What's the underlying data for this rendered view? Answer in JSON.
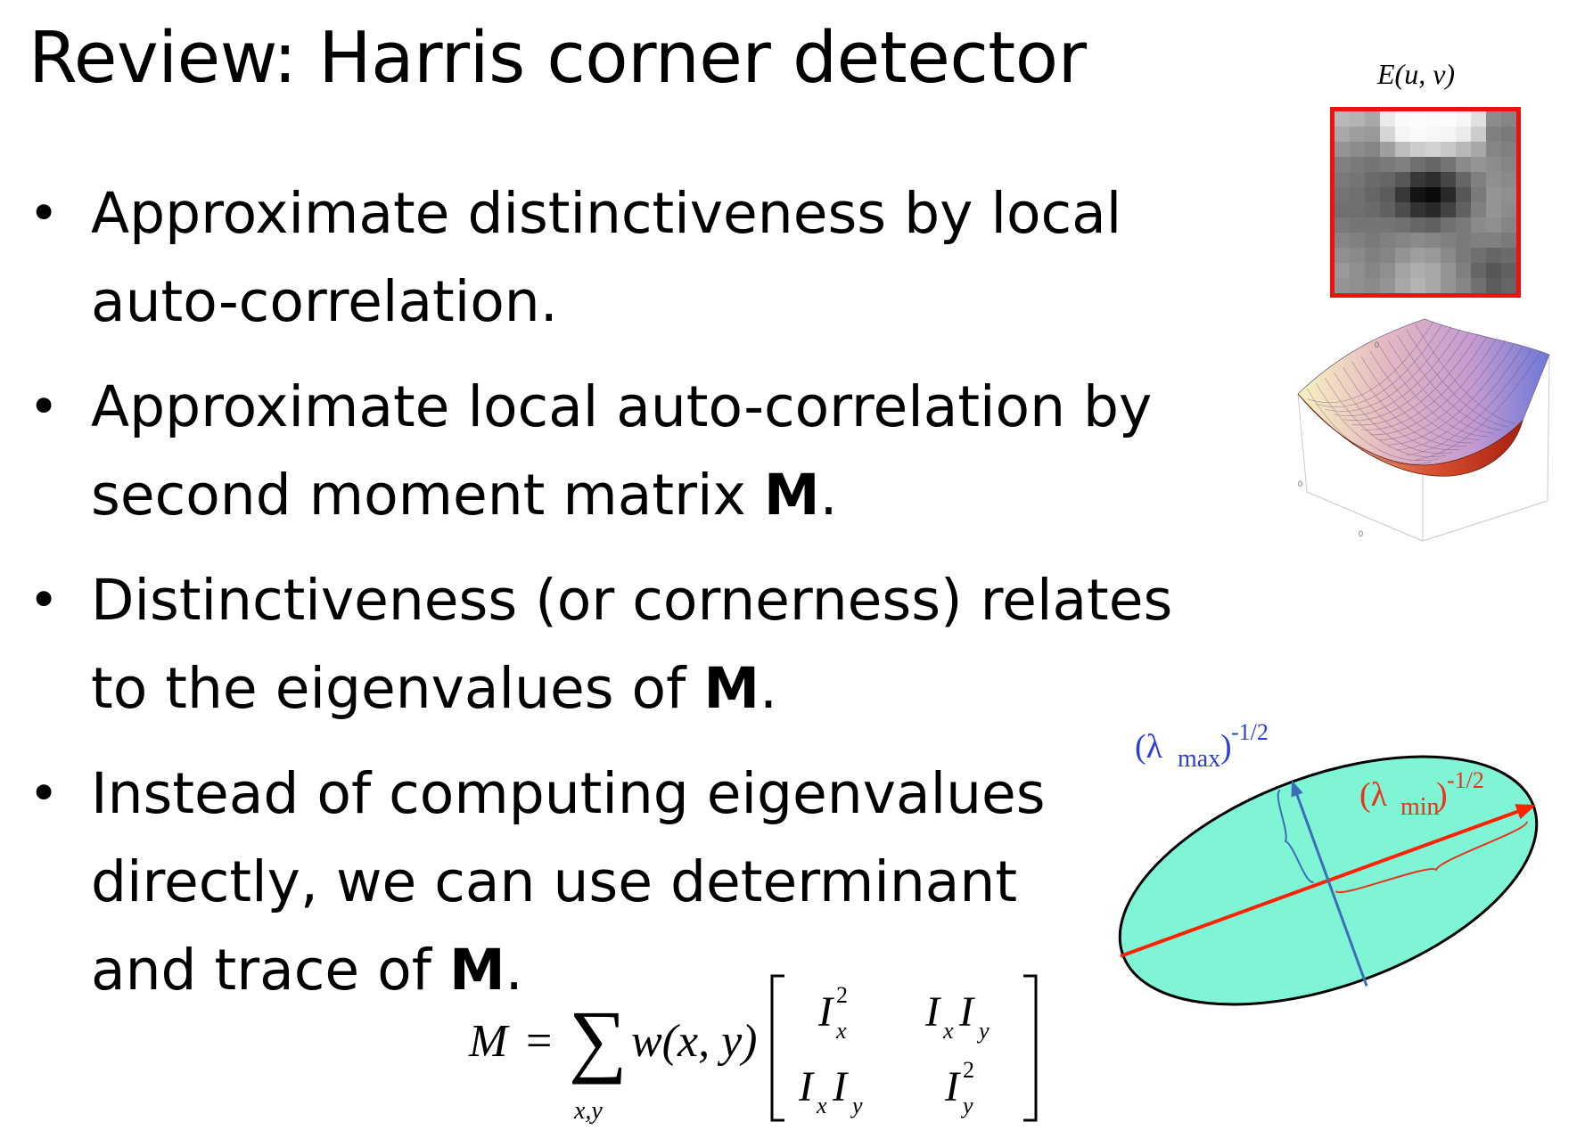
{
  "slide": {
    "title": "Review: Harris corner detector",
    "bullets": [
      {
        "lines": [
          [
            "Approximate distinctiveness by local"
          ],
          [
            "auto-correlation."
          ]
        ]
      },
      {
        "lines": [
          [
            "Approximate local auto-correlation by"
          ],
          [
            "second moment matrix ",
            {
              "b": "M"
            },
            "."
          ]
        ]
      },
      {
        "lines": [
          [
            "Distinctiveness (or cornerness) relates"
          ],
          [
            "to the eigenvalues of ",
            {
              "b": "M"
            },
            "."
          ]
        ]
      },
      {
        "lines": [
          [
            "Instead of computing eigenvalues"
          ],
          [
            "directly, we can use determinant"
          ],
          [
            "and trace of ",
            {
              "b": "M"
            },
            "."
          ]
        ]
      }
    ],
    "bullet_glyph": "•"
  },
  "equation": {
    "lhs": "M",
    "equals": "=",
    "sum_symbol": "∑",
    "sum_subscript": "x,y",
    "weight": "w(x, y)",
    "matrix": {
      "a11_base": "I",
      "a11_sub": "x",
      "a11_sup": "2",
      "a12_base1": "I",
      "a12_sub1": "x",
      "a12_base2": "I",
      "a12_sub2": "y",
      "a21_base1": "I",
      "a21_sub1": "x",
      "a21_base2": "I",
      "a21_sub2": "y",
      "a22_base": "I",
      "a22_sub": "y",
      "a22_sup": "2"
    }
  },
  "figures": {
    "error_label": "E(u, v)",
    "heatmap_border_color": "#ee1111",
    "heatmap_values": [
      [
        0.72,
        0.7,
        0.66,
        0.92,
        0.98,
        0.99,
        0.98,
        0.99,
        0.97,
        0.88,
        0.55,
        0.52
      ],
      [
        0.66,
        0.62,
        0.6,
        0.84,
        0.96,
        0.98,
        0.97,
        0.96,
        0.92,
        0.8,
        0.5,
        0.48
      ],
      [
        0.58,
        0.55,
        0.52,
        0.62,
        0.74,
        0.8,
        0.82,
        0.78,
        0.72,
        0.66,
        0.52,
        0.5
      ],
      [
        0.5,
        0.48,
        0.46,
        0.48,
        0.5,
        0.44,
        0.4,
        0.46,
        0.54,
        0.58,
        0.55,
        0.52
      ],
      [
        0.48,
        0.46,
        0.42,
        0.4,
        0.34,
        0.22,
        0.18,
        0.28,
        0.4,
        0.5,
        0.56,
        0.54
      ],
      [
        0.46,
        0.44,
        0.4,
        0.36,
        0.22,
        0.08,
        0.04,
        0.16,
        0.34,
        0.48,
        0.58,
        0.56
      ],
      [
        0.44,
        0.44,
        0.42,
        0.38,
        0.3,
        0.2,
        0.16,
        0.26,
        0.38,
        0.5,
        0.58,
        0.55
      ],
      [
        0.48,
        0.46,
        0.46,
        0.46,
        0.44,
        0.4,
        0.38,
        0.44,
        0.48,
        0.54,
        0.56,
        0.52
      ],
      [
        0.52,
        0.5,
        0.48,
        0.5,
        0.52,
        0.54,
        0.52,
        0.5,
        0.48,
        0.5,
        0.5,
        0.48
      ],
      [
        0.56,
        0.54,
        0.5,
        0.52,
        0.58,
        0.62,
        0.6,
        0.54,
        0.48,
        0.44,
        0.4,
        0.42
      ],
      [
        0.6,
        0.56,
        0.52,
        0.56,
        0.64,
        0.68,
        0.66,
        0.58,
        0.5,
        0.4,
        0.34,
        0.38
      ],
      [
        0.58,
        0.56,
        0.54,
        0.58,
        0.66,
        0.7,
        0.66,
        0.58,
        0.52,
        0.44,
        0.36,
        0.4
      ]
    ],
    "bowl_axis_ticks": [
      "0",
      "0",
      "0"
    ],
    "ellipse": {
      "fill_color": "#7ff5d5",
      "major_axis_color": "#ff2200",
      "minor_axis_color": "#3a6fb5",
      "lambda_max_label": "(λmax)-1/2",
      "lambda_max_base": "(λ",
      "lambda_max_sub": "max",
      "lambda_max_close": ")",
      "lambda_max_sup": "-1/2",
      "lambda_min_base": "(λ",
      "lambda_min_sub": "min",
      "lambda_min_close": ")",
      "lambda_min_sup": "-1/2",
      "lambda_max_color": "#2a3fd8",
      "lambda_min_color": "#e8321a"
    }
  }
}
